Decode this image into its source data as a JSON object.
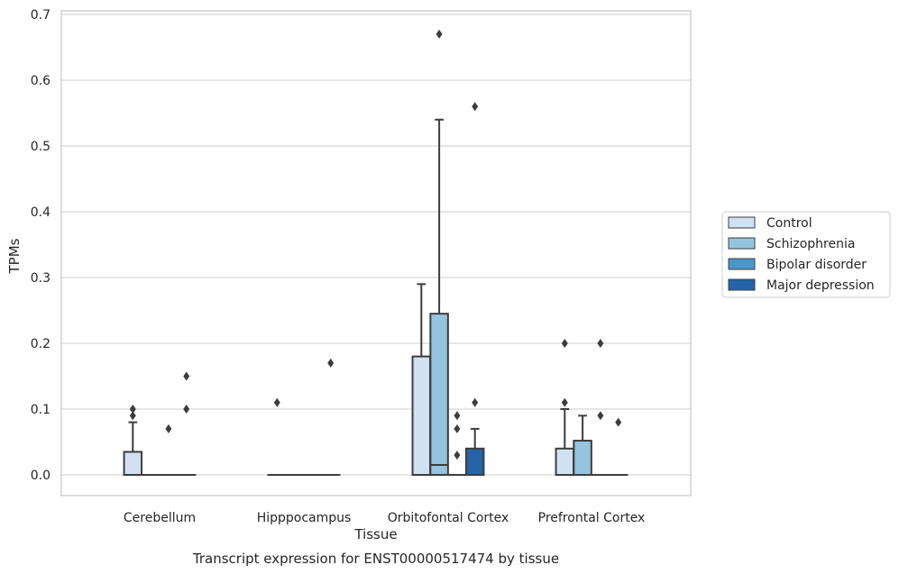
{
  "chart_data": {
    "type": "box",
    "title": "Transcript expression for ENST00000517474 by tissue",
    "xlabel": "Tissue",
    "ylabel": "TPMs",
    "ylim": [
      -0.032,
      0.705
    ],
    "yticks": [
      "0.0",
      "0.1",
      "0.2",
      "0.3",
      "0.4",
      "0.5",
      "0.6",
      "0.7"
    ],
    "grid": "horizontal",
    "legend_position": "right",
    "categories": [
      "Cerebellum",
      "Hipppocampus",
      "Orbitofontal Cortex",
      "Prefrontal Cortex"
    ],
    "series": [
      {
        "name": "Control",
        "color": "#d0e1f2"
      },
      {
        "name": "Schizophrenia",
        "color": "#94c4df"
      },
      {
        "name": "Bipolar disorder",
        "color": "#4a98c9"
      },
      {
        "name": "Major depression",
        "color": "#2464a8"
      }
    ],
    "boxes": [
      [
        {
          "q1": 0,
          "median": 0,
          "q3": 0.035,
          "whisker_low": 0,
          "whisker_high": 0.08,
          "outliers": [
            0.09,
            0.1
          ]
        },
        {
          "q1": 0,
          "median": 0,
          "q3": 0,
          "whisker_low": 0,
          "whisker_high": 0,
          "outliers": []
        },
        {
          "q1": 0,
          "median": 0,
          "q3": 0,
          "whisker_low": 0,
          "whisker_high": 0,
          "outliers": [
            0.07
          ]
        },
        {
          "q1": 0,
          "median": 0,
          "q3": 0,
          "whisker_low": 0,
          "whisker_high": 0,
          "outliers": [
            0.1,
            0.15
          ]
        }
      ],
      [
        {
          "q1": 0,
          "median": 0,
          "q3": 0,
          "whisker_low": 0,
          "whisker_high": 0,
          "outliers": [
            0.11
          ]
        },
        {
          "q1": 0,
          "median": 0,
          "q3": 0,
          "whisker_low": 0,
          "whisker_high": 0,
          "outliers": []
        },
        {
          "q1": 0,
          "median": 0,
          "q3": 0,
          "whisker_low": 0,
          "whisker_high": 0,
          "outliers": []
        },
        {
          "q1": 0,
          "median": 0,
          "q3": 0,
          "whisker_low": 0,
          "whisker_high": 0,
          "outliers": [
            0.17
          ]
        }
      ],
      [
        {
          "q1": 0,
          "median": 0,
          "q3": 0.18,
          "whisker_low": 0,
          "whisker_high": 0.29,
          "outliers": []
        },
        {
          "q1": 0,
          "median": 0.015,
          "q3": 0.245,
          "whisker_low": 0,
          "whisker_high": 0.54,
          "outliers": [
            0.67
          ]
        },
        {
          "q1": 0,
          "median": 0,
          "q3": 0,
          "whisker_low": 0,
          "whisker_high": 0,
          "outliers": [
            0.03,
            0.07,
            0.09
          ]
        },
        {
          "q1": 0,
          "median": 0,
          "q3": 0.04,
          "whisker_low": 0,
          "whisker_high": 0.07,
          "outliers": [
            0.11,
            0.56
          ]
        }
      ],
      [
        {
          "q1": 0,
          "median": 0,
          "q3": 0.04,
          "whisker_low": 0,
          "whisker_high": 0.1,
          "outliers": [
            0.11,
            0.2
          ]
        },
        {
          "q1": 0,
          "median": 0,
          "q3": 0.052,
          "whisker_low": 0,
          "whisker_high": 0.09,
          "outliers": []
        },
        {
          "q1": 0,
          "median": 0,
          "q3": 0,
          "whisker_low": 0,
          "whisker_high": 0,
          "outliers": [
            0.09,
            0.2
          ]
        },
        {
          "q1": 0,
          "median": 0,
          "q3": 0,
          "whisker_low": 0,
          "whisker_high": 0,
          "outliers": [
            0.08
          ]
        }
      ]
    ]
  }
}
